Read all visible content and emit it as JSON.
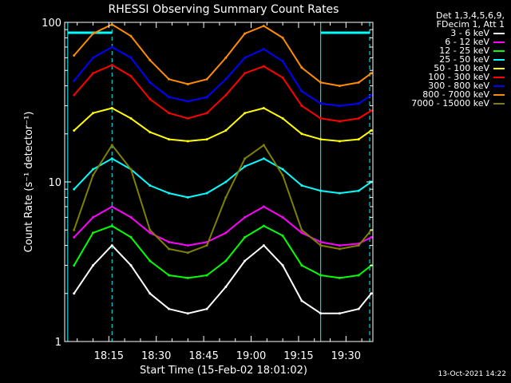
{
  "chart_data": {
    "type": "line",
    "title": "RHESSI Observing Summary Count Rates",
    "xlabel": "Start Time (15-Feb-02 18:01:02)",
    "ylabel": "Count Rate (s⁻¹ detector⁻¹)",
    "yscale": "log",
    "ylim": [
      1,
      100
    ],
    "xlim": [
      "18:01:02",
      "19:38:30"
    ],
    "x_ticks": [
      "18:15",
      "18:30",
      "18:45",
      "19:00",
      "19:15",
      "19:30"
    ],
    "y_ticks": [
      "1",
      "10",
      "100"
    ],
    "x": [
      "18:04",
      "18:10",
      "18:16",
      "18:22",
      "18:28",
      "18:34",
      "18:40",
      "18:46",
      "18:52",
      "18:58",
      "19:04",
      "19:10",
      "19:16",
      "19:22",
      "19:28",
      "19:34",
      "19:38"
    ],
    "series": [
      {
        "name": "3 - 6 keV",
        "color": "#ffffff",
        "values": [
          2.0,
          3.0,
          4.0,
          3.0,
          2.0,
          1.6,
          1.5,
          1.6,
          2.2,
          3.2,
          4.0,
          3.0,
          1.8,
          1.5,
          1.5,
          1.6,
          2.0
        ]
      },
      {
        "name": "6 - 12 keV",
        "color": "#ff00ff",
        "values": [
          4.5,
          6.0,
          7.0,
          6.0,
          4.8,
          4.2,
          4.0,
          4.2,
          4.8,
          6.0,
          7.0,
          6.0,
          4.8,
          4.2,
          4.0,
          4.1,
          4.5
        ]
      },
      {
        "name": "12 - 25 keV",
        "color": "#00ff00",
        "values": [
          3.0,
          4.8,
          5.3,
          4.5,
          3.2,
          2.6,
          2.5,
          2.6,
          3.2,
          4.5,
          5.3,
          4.6,
          3.0,
          2.6,
          2.5,
          2.6,
          3.0
        ]
      },
      {
        "name": "25 - 50 keV",
        "color": "#00ffff",
        "values": [
          9.0,
          12.0,
          14.0,
          12.0,
          9.5,
          8.5,
          8.0,
          8.5,
          10.0,
          12.5,
          14.0,
          12.0,
          9.5,
          8.8,
          8.5,
          8.8,
          10.0
        ]
      },
      {
        "name": "50 - 100 keV",
        "color": "#ffff00",
        "values": [
          21.0,
          27.0,
          29.0,
          25.0,
          20.5,
          18.5,
          18.0,
          18.5,
          21.0,
          27.0,
          29.0,
          25.0,
          20.0,
          18.5,
          18.0,
          18.5,
          21.0
        ]
      },
      {
        "name": "100 - 300 keV",
        "color": "#ff0000",
        "values": [
          35.0,
          48.0,
          54.0,
          46.0,
          33.0,
          27.0,
          25.0,
          27.0,
          35.0,
          48.0,
          53.0,
          45.0,
          30.0,
          25.0,
          24.0,
          25.0,
          28.0
        ]
      },
      {
        "name": "300 - 800 keV",
        "color": "#0000ff",
        "values": [
          43.0,
          60.0,
          70.0,
          60.0,
          42.0,
          34.0,
          32.0,
          34.0,
          44.0,
          60.0,
          68.0,
          57.0,
          37.0,
          31.0,
          30.0,
          31.0,
          35.0
        ]
      },
      {
        "name": "800 - 7000 keV",
        "color": "#ff8c00",
        "values": [
          62.0,
          85.0,
          97.0,
          82.0,
          58.0,
          44.0,
          41.0,
          44.0,
          60.0,
          85.0,
          95.0,
          80.0,
          52.0,
          42.0,
          40.0,
          42.0,
          48.0
        ]
      },
      {
        "name": "7000 - 15000 keV",
        "color": "#808000",
        "values": [
          5.0,
          11.0,
          17.0,
          12.0,
          5.0,
          3.8,
          3.6,
          4.0,
          8.0,
          14.0,
          17.0,
          11.0,
          5.0,
          4.0,
          3.8,
          4.0,
          5.0
        ]
      }
    ],
    "grid": false,
    "legend_position": "top-right",
    "colors": {
      "background": "#000000",
      "axes": "#ffffff",
      "markers": "#00ffff"
    }
  },
  "legend_header": [
    "Det 1,3,4,5,6,9,",
    "FDecim 1, Att 1"
  ],
  "timestamp": "13-Oct-2021 14:22"
}
